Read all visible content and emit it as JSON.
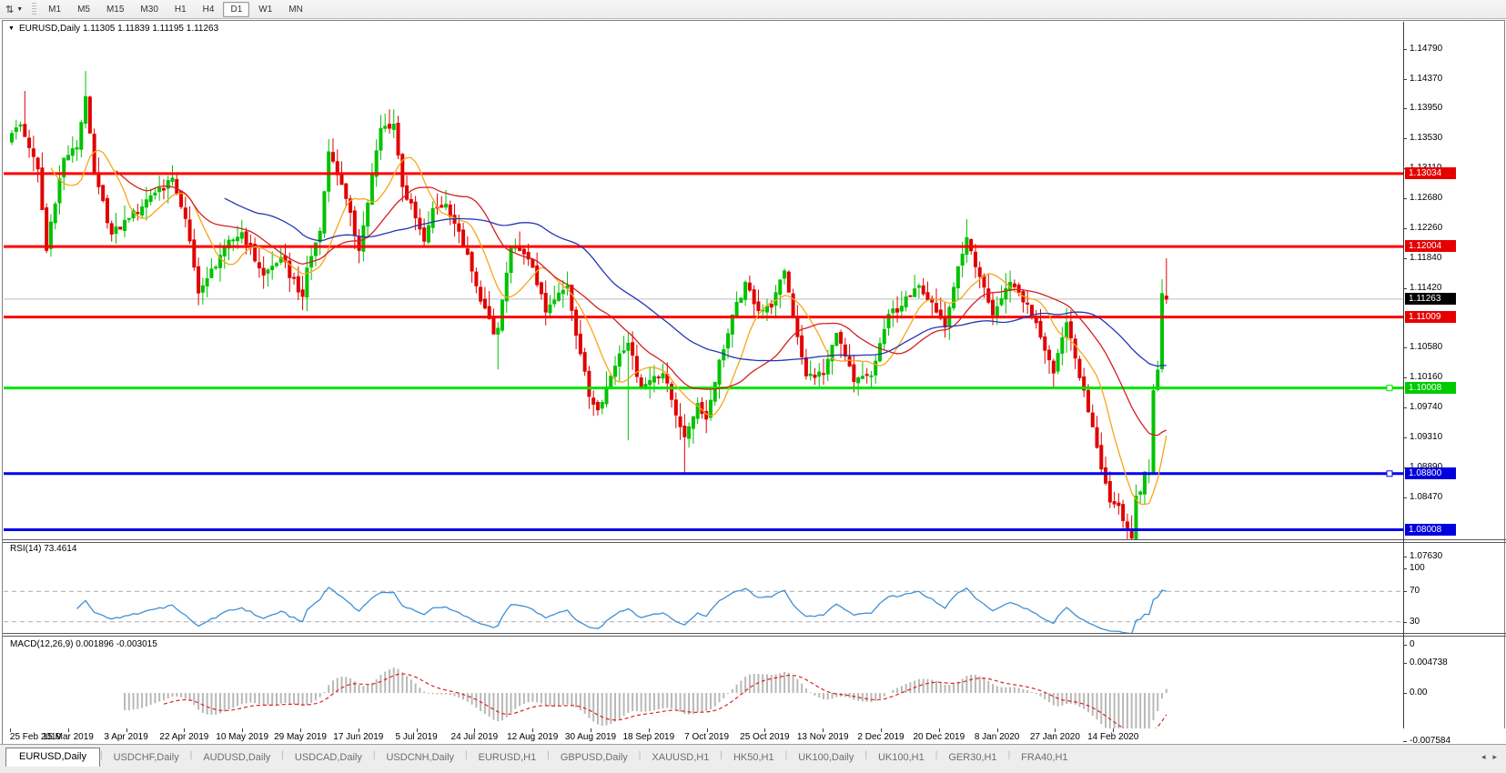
{
  "toolbar": {
    "chart_menu_icon": "chart-shift-icon",
    "timeframes": [
      {
        "label": "M1",
        "active": false
      },
      {
        "label": "M5",
        "active": false
      },
      {
        "label": "M15",
        "active": false
      },
      {
        "label": "M30",
        "active": false
      },
      {
        "label": "H1",
        "active": false
      },
      {
        "label": "H4",
        "active": false
      },
      {
        "label": "D1",
        "active": true
      },
      {
        "label": "W1",
        "active": false
      },
      {
        "label": "MN",
        "active": false
      }
    ]
  },
  "chart": {
    "title_text": "EURUSD,Daily  1.11305 1.11839 1.11195 1.11263",
    "rsi_label": "RSI(14) 73.4614",
    "macd_label": "MACD(12,26,9) 0.001896 -0.003015"
  },
  "chart_data": {
    "type": "candlestick",
    "symbol": "EURUSD",
    "timeframe": "Daily",
    "last_ohlc": {
      "open": 1.11305,
      "high": 1.11839,
      "low": 1.11195,
      "close": 1.11263
    },
    "num_candles": 267,
    "colors": {
      "up": "#00c200",
      "down": "#e00000",
      "ma_fast": "#f7a519",
      "ma_mid": "#d42020",
      "ma_slow": "#2336b2",
      "rsi": "#3e8fd6",
      "macd_bar": "#b8b8b8",
      "macd_signal": "#e02020",
      "level_red": "#ff0000",
      "level_green": "#00e400",
      "level_blue": "#0000ee",
      "price_line": "#bdbdbd"
    },
    "y_axis": {
      "top_price": 1.1479,
      "ticks": [
        "1.14790",
        "1.14370",
        "1.13950",
        "1.13530",
        "1.13110",
        "1.12680",
        "1.12260",
        "1.11840",
        "1.11420",
        "1.10580",
        "1.10160",
        "1.09740",
        "1.09310",
        "1.08890",
        "1.08470",
        "1.07630"
      ]
    },
    "x_axis": {
      "labels": [
        "25 Feb 2019",
        "15 Mar 2019",
        "3 Apr 2019",
        "22 Apr 2019",
        "10 May 2019",
        "29 May 2019",
        "17 Jun 2019",
        "5 Jul 2019",
        "24 Jul 2019",
        "12 Aug 2019",
        "30 Aug 2019",
        "18 Sep 2019",
        "7 Oct 2019",
        "25 Oct 2019",
        "13 Nov 2019",
        "2 Dec 2019",
        "20 Dec 2019",
        "8 Jan 2020",
        "27 Jan 2020",
        "14 Feb 2020"
      ]
    },
    "h_lines": [
      {
        "price": 1.13034,
        "label": "1.13034",
        "kind": "red"
      },
      {
        "price": 1.12004,
        "label": "1.12004",
        "kind": "red"
      },
      {
        "price": 1.11263,
        "label": "1.11263",
        "kind": "price"
      },
      {
        "price": 1.11009,
        "label": "1.11009",
        "kind": "red"
      },
      {
        "price": 1.10008,
        "label": "1.10008",
        "kind": "green",
        "handle": true
      },
      {
        "price": 1.088,
        "label": "1.08800",
        "kind": "blue",
        "handle": true
      },
      {
        "price": 1.08008,
        "label": "1.08008",
        "kind": "blue"
      }
    ],
    "badge_colors": {
      "red": "#e60000",
      "green": "#00ca00",
      "blue": "#0000dd",
      "price": "#000000"
    },
    "price_path": [
      [
        0,
        1.136
      ],
      [
        2,
        1.1372
      ],
      [
        4,
        1.134
      ],
      [
        6,
        1.131
      ],
      [
        8,
        1.1195
      ],
      [
        9,
        1.1235
      ],
      [
        12,
        1.1325
      ],
      [
        15,
        1.134
      ],
      [
        17,
        1.1412
      ],
      [
        19,
        1.1302
      ],
      [
        23,
        1.1218
      ],
      [
        27,
        1.124
      ],
      [
        32,
        1.1272
      ],
      [
        37,
        1.1297
      ],
      [
        40,
        1.124
      ],
      [
        43,
        1.1135
      ],
      [
        45,
        1.1155
      ],
      [
        49,
        1.12
      ],
      [
        53,
        1.122
      ],
      [
        58,
        1.116
      ],
      [
        62,
        1.1185
      ],
      [
        67,
        1.113
      ],
      [
        68,
        1.117
      ],
      [
        71,
        1.1222
      ],
      [
        73,
        1.1334
      ],
      [
        76,
        1.1288
      ],
      [
        80,
        1.1195
      ],
      [
        85,
        1.1367
      ],
      [
        88,
        1.1373
      ],
      [
        90,
        1.1285
      ],
      [
        95,
        1.1208
      ],
      [
        97,
        1.1254
      ],
      [
        100,
        1.126
      ],
      [
        103,
        1.1222
      ],
      [
        107,
        1.1145
      ],
      [
        111,
        1.1077
      ],
      [
        112,
        1.1085
      ],
      [
        115,
        1.12
      ],
      [
        117,
        1.1195
      ],
      [
        120,
        1.1171
      ],
      [
        123,
        1.1108
      ],
      [
        128,
        1.1145
      ],
      [
        133,
        1.0989
      ],
      [
        135,
        1.097
      ],
      [
        140,
        1.1049
      ],
      [
        142,
        1.1064
      ],
      [
        145,
        1.1
      ],
      [
        148,
        1.1017
      ],
      [
        150,
        1.1021
      ],
      [
        155,
        1.0932
      ],
      [
        158,
        1.0979
      ],
      [
        160,
        1.0957
      ],
      [
        163,
        1.104
      ],
      [
        169,
        1.115
      ],
      [
        172,
        1.111
      ],
      [
        175,
        1.1115
      ],
      [
        178,
        1.1166
      ],
      [
        183,
        1.1018
      ],
      [
        187,
        1.1021
      ],
      [
        190,
        1.1078
      ],
      [
        194,
        1.101
      ],
      [
        198,
        1.1018
      ],
      [
        202,
        1.1105
      ],
      [
        207,
        1.113
      ],
      [
        209,
        1.1145
      ],
      [
        212,
        1.1122
      ],
      [
        215,
        1.1087
      ],
      [
        218,
        1.1172
      ],
      [
        220,
        1.1213
      ],
      [
        222,
        1.1172
      ],
      [
        226,
        1.1104
      ],
      [
        230,
        1.115
      ],
      [
        232,
        1.1136
      ],
      [
        236,
        1.1093
      ],
      [
        240,
        1.1022
      ],
      [
        243,
        1.1093
      ],
      [
        245,
        1.1043
      ],
      [
        249,
        1.0946
      ],
      [
        253,
        1.084
      ],
      [
        255,
        1.0835
      ],
      [
        257,
        1.08
      ],
      [
        258,
        1.0789
      ],
      [
        259,
        1.0848
      ],
      [
        260,
        1.0854
      ],
      [
        261,
        1.0882
      ],
      [
        262,
        1.088
      ],
      [
        263,
        1.0997
      ],
      [
        264,
        1.1026
      ],
      [
        265,
        1.1134
      ],
      [
        266,
        1.11263
      ]
    ],
    "wick_overrides": {
      "3": {
        "h": 1.142
      },
      "17": {
        "h": 1.1448
      },
      "112": {
        "l": 1.1027
      },
      "142": {
        "l": 1.0927
      },
      "155": {
        "l": 1.0879
      },
      "220": {
        "h": 1.1239
      },
      "258": {
        "l": 1.0777
      },
      "266": {
        "o": 1.11305,
        "h": 1.11839,
        "l": 1.11195
      }
    },
    "moving_averages": [
      {
        "name": "fast",
        "period": 10,
        "color_key": "ma_fast"
      },
      {
        "name": "mid",
        "period": 25,
        "color_key": "ma_mid"
      },
      {
        "name": "slow",
        "period": 50,
        "color_key": "ma_slow"
      }
    ],
    "indicators": [
      {
        "name": "RSI",
        "label": "RSI(14) 73.4614",
        "period": 14,
        "levels": [
          70,
          30
        ],
        "axis_ticks": [
          "100",
          "70",
          "30",
          "0"
        ],
        "value": 73.4614
      },
      {
        "name": "MACD",
        "label": "MACD(12,26,9) 0.001896 -0.003015",
        "fast": 12,
        "slow": 26,
        "signal": 9,
        "axis_ticks": [
          "0.004738",
          "0.00",
          "-0.007584"
        ],
        "value": 0.001896,
        "signal_value": -0.003015
      }
    ]
  },
  "tabs": {
    "items": [
      {
        "label": "EURUSD,Daily",
        "active": true
      },
      {
        "label": "USDCHF,Daily",
        "active": false
      },
      {
        "label": "AUDUSD,Daily",
        "active": false
      },
      {
        "label": "USDCAD,Daily",
        "active": false
      },
      {
        "label": "USDCNH,Daily",
        "active": false
      },
      {
        "label": "EURUSD,H1",
        "active": false
      },
      {
        "label": "GBPUSD,Daily",
        "active": false
      },
      {
        "label": "XAUUSD,H1",
        "active": false
      },
      {
        "label": "HK50,H1",
        "active": false
      },
      {
        "label": "UK100,Daily",
        "active": false
      },
      {
        "label": "UK100,H1",
        "active": false
      },
      {
        "label": "GER30,H1",
        "active": false
      },
      {
        "label": "FRA40,H1",
        "active": false
      }
    ],
    "scroll_left": "◂",
    "scroll_right": "▸"
  }
}
